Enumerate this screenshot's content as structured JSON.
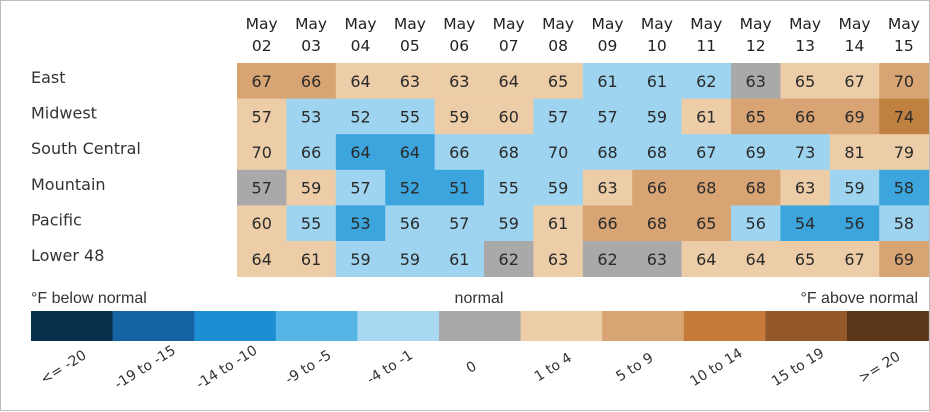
{
  "chart_data": {
    "type": "heatmap",
    "title": "",
    "columns": [
      {
        "month": "May",
        "day": "02"
      },
      {
        "month": "May",
        "day": "03"
      },
      {
        "month": "May",
        "day": "04"
      },
      {
        "month": "May",
        "day": "05"
      },
      {
        "month": "May",
        "day": "06"
      },
      {
        "month": "May",
        "day": "07"
      },
      {
        "month": "May",
        "day": "08"
      },
      {
        "month": "May",
        "day": "09"
      },
      {
        "month": "May",
        "day": "10"
      },
      {
        "month": "May",
        "day": "11"
      },
      {
        "month": "May",
        "day": "12"
      },
      {
        "month": "May",
        "day": "13"
      },
      {
        "month": "May",
        "day": "14"
      },
      {
        "month": "May",
        "day": "15"
      }
    ],
    "rows": [
      "East",
      "Midwest",
      "South Central",
      "Mountain",
      "Pacific",
      "Lower 48"
    ],
    "values": [
      [
        67,
        66,
        64,
        63,
        63,
        64,
        65,
        61,
        61,
        62,
        63,
        65,
        67,
        70
      ],
      [
        57,
        53,
        52,
        55,
        59,
        60,
        57,
        57,
        59,
        61,
        65,
        66,
        69,
        74
      ],
      [
        70,
        66,
        64,
        64,
        66,
        68,
        70,
        68,
        68,
        67,
        69,
        73,
        81,
        79
      ],
      [
        57,
        59,
        57,
        52,
        51,
        55,
        59,
        63,
        66,
        68,
        68,
        63,
        59,
        58
      ],
      [
        60,
        55,
        53,
        56,
        57,
        59,
        61,
        66,
        68,
        65,
        56,
        54,
        56,
        58
      ],
      [
        64,
        61,
        59,
        59,
        61,
        62,
        63,
        62,
        63,
        64,
        64,
        65,
        67,
        69
      ]
    ],
    "category_grid": [
      [
        6,
        6,
        5,
        5,
        5,
        5,
        5,
        3,
        3,
        3,
        4,
        5,
        5,
        6
      ],
      [
        5,
        3,
        3,
        3,
        5,
        5,
        3,
        3,
        3,
        5,
        6,
        6,
        6,
        7
      ],
      [
        5,
        3,
        2,
        2,
        3,
        3,
        3,
        3,
        3,
        3,
        3,
        3,
        5,
        5
      ],
      [
        4,
        5,
        3,
        2,
        2,
        3,
        3,
        5,
        6,
        6,
        6,
        5,
        3,
        2
      ],
      [
        5,
        3,
        2,
        3,
        3,
        3,
        5,
        6,
        6,
        6,
        3,
        2,
        2,
        3
      ],
      [
        5,
        5,
        3,
        3,
        3,
        4,
        5,
        4,
        4,
        5,
        5,
        5,
        5,
        6
      ]
    ],
    "legend": {
      "left_title": "°F below normal",
      "center_title": "normal",
      "right_title": "°F above normal",
      "bins": [
        {
          "label": "<= -20",
          "color": "#08304d"
        },
        {
          "label": "-19 to -15",
          "color": "#1563a3"
        },
        {
          "label": "-14 to -10",
          "color": "#1d8ed2"
        },
        {
          "label": "-9 to -5",
          "color": "#55b6e6"
        },
        {
          "label": "-4 to -1",
          "color": "#a8d9f1"
        },
        {
          "label": "0",
          "color": "#a9a9a9"
        },
        {
          "label": "1 to 4",
          "color": "#edcda7"
        },
        {
          "label": "5 to 9",
          "color": "#d9a474"
        },
        {
          "label": "10 to 14",
          "color": "#c57a3a"
        },
        {
          "label": "15 to 19",
          "color": "#94592a"
        },
        {
          "label": ">= 20",
          "color": "#5a3718"
        }
      ]
    }
  },
  "cell_palette": [
    "#08304d",
    "#1563a3",
    "#3ca5dd",
    "#9ed4ef",
    "#a9a9a9",
    "#edcda7",
    "#d9a474",
    "#c0803f"
  ]
}
